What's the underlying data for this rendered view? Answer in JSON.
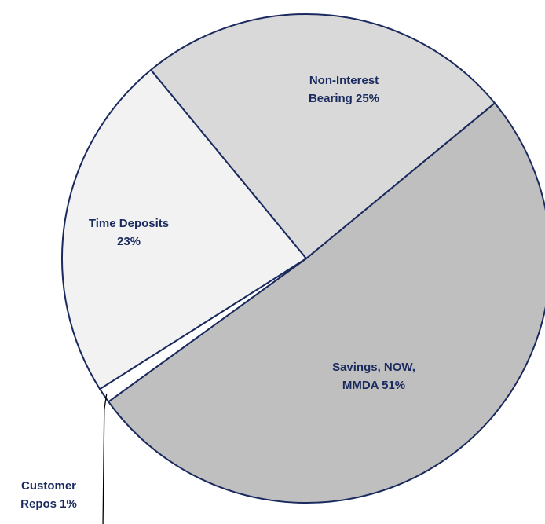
{
  "chart_data": {
    "type": "pie",
    "categories": [
      "Savings, NOW, MMDA",
      "Customer Repos",
      "Time Deposits",
      "Non-Interest Bearing"
    ],
    "values": [
      51,
      1,
      23,
      25
    ],
    "value_labels": [
      "51%",
      "1%",
      "23%",
      "25%"
    ],
    "colors": [
      "#bfbfbf",
      "#ffffff",
      "#f2f2f2",
      "#d9d9d9"
    ],
    "edge_color": "#1a2a5e"
  }
}
